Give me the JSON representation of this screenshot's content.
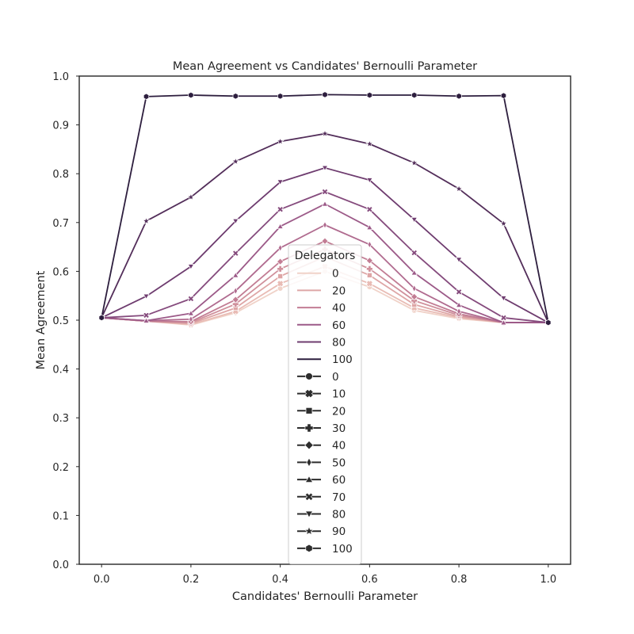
{
  "chart_data": {
    "type": "line",
    "title": "Mean Agreement vs Candidates' Bernoulli Parameter",
    "xlabel": "Candidates' Bernoulli Parameter",
    "ylabel": "Mean Agreement",
    "xlim": [
      -0.05,
      1.05
    ],
    "ylim": [
      0.0,
      1.0
    ],
    "x_ticks": [
      "0.0",
      "0.2",
      "0.4",
      "0.6",
      "0.8",
      "1.0"
    ],
    "y_ticks": [
      "0.0",
      "0.1",
      "0.2",
      "0.3",
      "0.4",
      "0.5",
      "0.6",
      "0.7",
      "0.8",
      "0.9",
      "1.0"
    ],
    "grid": false,
    "x": [
      0.0,
      0.1,
      0.2,
      0.3,
      0.4,
      0.5,
      0.6,
      0.7,
      0.8,
      0.9,
      1.0
    ],
    "series": [
      {
        "name": "0",
        "marker": "circle",
        "color": "#f0d2c8",
        "values": [
          0.505,
          0.498,
          0.49,
          0.515,
          0.565,
          0.6,
          0.568,
          0.52,
          0.503,
          0.495,
          0.495
        ]
      },
      {
        "name": "10",
        "marker": "x",
        "color": "#e9bcb5",
        "values": [
          0.505,
          0.498,
          0.491,
          0.518,
          0.575,
          0.61,
          0.575,
          0.525,
          0.505,
          0.495,
          0.495
        ]
      },
      {
        "name": "20",
        "marker": "square",
        "color": "#dea6a6",
        "values": [
          0.505,
          0.498,
          0.493,
          0.525,
          0.59,
          0.63,
          0.592,
          0.532,
          0.507,
          0.495,
          0.495
        ]
      },
      {
        "name": "30",
        "marker": "plus",
        "color": "#d0919c",
        "values": [
          0.505,
          0.498,
          0.495,
          0.533,
          0.605,
          0.645,
          0.605,
          0.54,
          0.51,
          0.495,
          0.495
        ]
      },
      {
        "name": "40",
        "marker": "diamond",
        "color": "#c27d94",
        "values": [
          0.505,
          0.498,
          0.497,
          0.542,
          0.62,
          0.662,
          0.622,
          0.548,
          0.513,
          0.495,
          0.495
        ]
      },
      {
        "name": "50",
        "marker": "thin_diamond",
        "color": "#b06b8f",
        "values": [
          0.505,
          0.499,
          0.502,
          0.56,
          0.648,
          0.695,
          0.655,
          0.565,
          0.518,
          0.495,
          0.495
        ]
      },
      {
        "name": "60",
        "marker": "triangle_up",
        "color": "#9c5a88",
        "values": [
          0.505,
          0.499,
          0.514,
          0.592,
          0.692,
          0.738,
          0.69,
          0.597,
          0.531,
          0.495,
          0.495
        ]
      },
      {
        "name": "70",
        "marker": "x_filled",
        "color": "#854b7d",
        "values": [
          0.505,
          0.51,
          0.544,
          0.637,
          0.727,
          0.763,
          0.727,
          0.638,
          0.558,
          0.505,
          0.495
        ]
      },
      {
        "name": "80",
        "marker": "triangle_down",
        "color": "#6e3c6f",
        "values": [
          0.505,
          0.549,
          0.61,
          0.703,
          0.783,
          0.812,
          0.787,
          0.706,
          0.624,
          0.545,
          0.495
        ]
      },
      {
        "name": "90",
        "marker": "star",
        "color": "#532e5a",
        "values": [
          0.505,
          0.703,
          0.752,
          0.825,
          0.866,
          0.882,
          0.861,
          0.822,
          0.769,
          0.698,
          0.495
        ]
      },
      {
        "name": "100",
        "marker": "hexagon",
        "color": "#2d1e3e",
        "values": [
          0.505,
          0.958,
          0.961,
          0.959,
          0.959,
          0.962,
          0.961,
          0.961,
          0.959,
          0.96,
          0.495
        ]
      }
    ],
    "legend": {
      "title": "Delegators",
      "placement": "center",
      "hue_entries": [
        {
          "label": "0",
          "color": "#f0d2c8"
        },
        {
          "label": "20",
          "color": "#dea6a6"
        },
        {
          "label": "40",
          "color": "#c27d94"
        },
        {
          "label": "60",
          "color": "#9c5a88"
        },
        {
          "label": "80",
          "color": "#6e3c6f"
        },
        {
          "label": "100",
          "color": "#2d1e3e"
        }
      ],
      "style_entries": [
        {
          "label": "0",
          "marker": "circle"
        },
        {
          "label": "10",
          "marker": "x"
        },
        {
          "label": "20",
          "marker": "square"
        },
        {
          "label": "30",
          "marker": "plus"
        },
        {
          "label": "40",
          "marker": "diamond"
        },
        {
          "label": "50",
          "marker": "thin_diamond"
        },
        {
          "label": "60",
          "marker": "triangle_up"
        },
        {
          "label": "70",
          "marker": "x_filled"
        },
        {
          "label": "80",
          "marker": "triangle_down"
        },
        {
          "label": "90",
          "marker": "star"
        },
        {
          "label": "100",
          "marker": "hexagon"
        }
      ],
      "style_color": "#2d2d2d"
    }
  }
}
